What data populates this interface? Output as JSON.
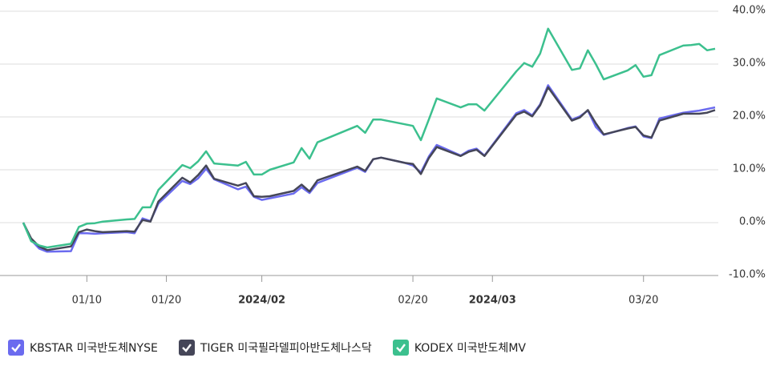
{
  "chart_data": {
    "type": "line",
    "x": [
      "2024-01-02",
      "2024-01-03",
      "2024-01-04",
      "2024-01-05",
      "2024-01-08",
      "2024-01-09",
      "2024-01-10",
      "2024-01-11",
      "2024-01-12",
      "2024-01-15",
      "2024-01-16",
      "2024-01-17",
      "2024-01-18",
      "2024-01-19",
      "2024-01-22",
      "2024-01-23",
      "2024-01-24",
      "2024-01-25",
      "2024-01-26",
      "2024-01-29",
      "2024-01-30",
      "2024-01-31",
      "2024-02-01",
      "2024-02-02",
      "2024-02-05",
      "2024-02-06",
      "2024-02-07",
      "2024-02-08",
      "2024-02-13",
      "2024-02-14",
      "2024-02-15",
      "2024-02-16",
      "2024-02-19",
      "2024-02-20",
      "2024-02-21",
      "2024-02-22",
      "2024-02-23",
      "2024-02-26",
      "2024-02-27",
      "2024-02-28",
      "2024-02-29",
      "2024-03-04",
      "2024-03-05",
      "2024-03-06",
      "2024-03-07",
      "2024-03-08",
      "2024-03-11",
      "2024-03-12",
      "2024-03-13",
      "2024-03-14",
      "2024-03-15",
      "2024-03-18",
      "2024-03-19",
      "2024-03-20",
      "2024-03-21",
      "2024-03-22",
      "2024-03-25",
      "2024-03-26",
      "2024-03-27",
      "2024-03-28",
      "2024-03-29"
    ],
    "xlim": [
      "2024-01-02",
      "2024-03-29"
    ],
    "xticks": [
      {
        "value": "2024-01-10",
        "label": "01/10"
      },
      {
        "value": "2024-01-20",
        "label": "01/20"
      },
      {
        "value": "2024-02-01",
        "label": "2024/02",
        "bold": true
      },
      {
        "value": "2024-02-20",
        "label": "02/20"
      },
      {
        "value": "2024-03-01",
        "label": "2024/03",
        "bold": true
      },
      {
        "value": "2024-03-20",
        "label": "03/20"
      }
    ],
    "ylim": [
      -10,
      40
    ],
    "yticks": [
      {
        "value": -10,
        "label": "-10.0%"
      },
      {
        "value": 0,
        "label": "0.0%"
      },
      {
        "value": 10,
        "label": "10.0%"
      },
      {
        "value": 20,
        "label": "20.0%"
      },
      {
        "value": 30,
        "label": "30.0%"
      },
      {
        "value": 40,
        "label": "40.0%"
      }
    ],
    "grid": true,
    "series": [
      {
        "name": "KBSTAR 미국반도체NYSE",
        "color": "#6b6bef",
        "values": [
          0,
          -3.3,
          -4.9,
          -5.5,
          -5.4,
          -2.0,
          -2.0,
          -2.1,
          -2.0,
          -1.8,
          -2.0,
          0.8,
          0.3,
          3.6,
          7.9,
          7.3,
          8.4,
          10.2,
          8.2,
          6.3,
          6.8,
          4.9,
          4.3,
          4.6,
          5.5,
          6.7,
          5.6,
          7.5,
          10.4,
          9.6,
          12.0,
          12.3,
          11.3,
          10.8,
          9.5,
          12.5,
          14.7,
          12.7,
          13.6,
          14.0,
          12.7,
          20.7,
          21.3,
          20.3,
          22.4,
          26.0,
          19.5,
          20.1,
          21.2,
          18.1,
          16.6,
          17.9,
          18.2,
          16.3,
          16.0,
          19.7,
          20.8,
          21.0,
          21.2,
          21.5,
          21.8
        ]
      },
      {
        "name": "TIGER 미국필라델피아반도체나스닥",
        "color": "#454658",
        "values": [
          0,
          -3.0,
          -4.5,
          -5.2,
          -4.5,
          -1.8,
          -1.3,
          -1.6,
          -1.8,
          -1.6,
          -1.7,
          0.5,
          0.2,
          4.0,
          8.5,
          7.6,
          9.0,
          10.8,
          8.3,
          7.0,
          7.5,
          5.0,
          4.9,
          5.0,
          6.0,
          7.2,
          5.9,
          8.0,
          10.6,
          9.8,
          12.0,
          12.3,
          11.3,
          11.1,
          9.2,
          12.2,
          14.3,
          12.6,
          13.4,
          13.8,
          12.6,
          20.4,
          21.0,
          20.1,
          22.2,
          25.6,
          19.3,
          19.9,
          21.3,
          18.8,
          16.7,
          17.8,
          18.1,
          16.5,
          16.1,
          19.3,
          20.6,
          20.6,
          20.6,
          20.8,
          21.3
        ]
      },
      {
        "name": "KODEX 미국반도체MV",
        "color": "#3cc08e",
        "values": [
          0,
          -3.5,
          -4.3,
          -4.7,
          -4.0,
          -0.8,
          -0.2,
          -0.1,
          0.2,
          0.6,
          0.7,
          2.9,
          2.9,
          6.2,
          10.9,
          10.3,
          11.6,
          13.5,
          11.2,
          10.8,
          11.5,
          9.1,
          9.1,
          10.0,
          11.4,
          14.1,
          12.1,
          15.2,
          18.3,
          17.0,
          19.5,
          19.5,
          18.6,
          18.3,
          15.6,
          19.5,
          23.5,
          21.8,
          22.4,
          22.4,
          21.2,
          28.6,
          30.2,
          29.5,
          32.0,
          36.7,
          28.9,
          29.2,
          32.6,
          30.0,
          27.1,
          28.8,
          29.8,
          27.6,
          27.9,
          31.7,
          33.5,
          33.6,
          33.8,
          32.6,
          32.9
        ]
      }
    ]
  }
}
